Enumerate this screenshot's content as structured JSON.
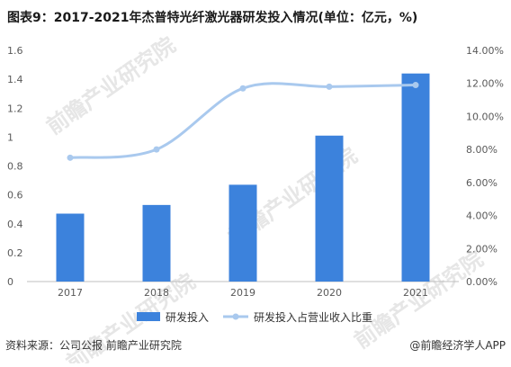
{
  "chart_data": {
    "type": "bar",
    "title": "图表9：2017-2021年杰普特光纤激光器研发投入情况(单位：亿元，%)",
    "categories": [
      "2017",
      "2018",
      "2019",
      "2020",
      "2021"
    ],
    "series": [
      {
        "name": "研发投入",
        "type": "bar",
        "axis": "left",
        "values": [
          0.47,
          0.53,
          0.67,
          1.01,
          1.44
        ]
      },
      {
        "name": "研发投入占营业收入比重",
        "type": "line",
        "axis": "right",
        "smooth": true,
        "values": [
          7.5,
          8.0,
          11.7,
          11.8,
          11.9
        ]
      }
    ],
    "y_left": {
      "min": 0,
      "max": 1.6,
      "ticks": [
        0,
        0.2,
        0.4,
        0.6,
        0.8,
        1,
        1.2,
        1.4,
        1.6
      ]
    },
    "y_right": {
      "min": 0,
      "max": 14,
      "unit": "%",
      "ticks": [
        0,
        2,
        4,
        6,
        8,
        10,
        12,
        14
      ],
      "tick_labels": [
        "0.00%",
        "2.00%",
        "4.00%",
        "6.00%",
        "8.00%",
        "10.00%",
        "12.00%",
        "14.00%"
      ]
    },
    "grid": false,
    "legend_position": "bottom-center",
    "colors": {
      "bar": "#3c82dc",
      "line": "#a9c9ee",
      "axis": "#bfbfbf",
      "tick_text": "#595959",
      "title": "#1a1a1a"
    }
  },
  "footer": {
    "source": "资料来源：公司公报 前瞻产业研究院",
    "brand": "@前瞻经济学人APP"
  },
  "watermark": {
    "text": "前瞻产业研究院"
  }
}
